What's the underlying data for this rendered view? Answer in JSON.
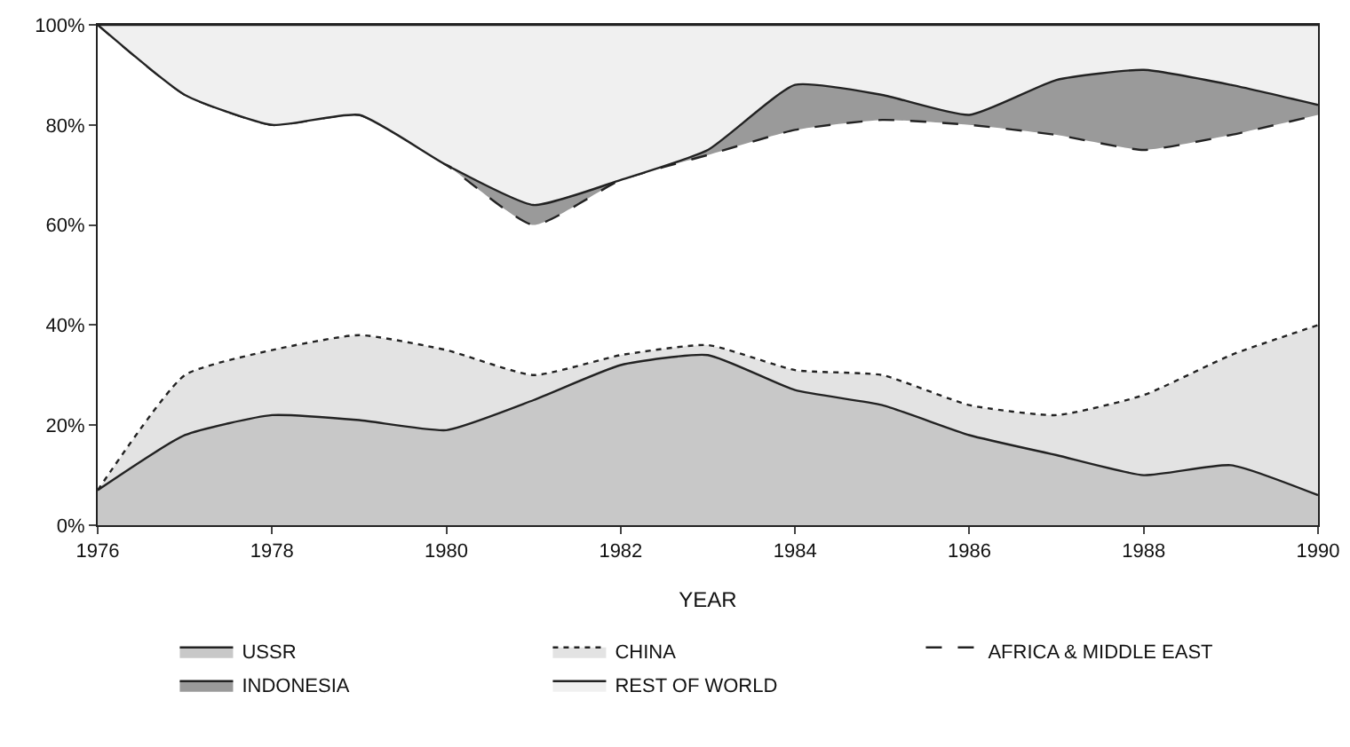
{
  "chart_data": {
    "type": "area",
    "stacked": true,
    "xlabel": "YEAR",
    "legend": "bottom",
    "marker": "none",
    "x": [
      1976,
      1977,
      1978,
      1979,
      1980,
      1981,
      1982,
      1983,
      1984,
      1985,
      1986,
      1987,
      1988,
      1989,
      1990
    ],
    "xlim": [
      1976,
      1990
    ],
    "xticks": [
      1976,
      1978,
      1980,
      1982,
      1984,
      1986,
      1988,
      1990
    ],
    "ylim": [
      0,
      100
    ],
    "yticks": [
      {
        "value": 0,
        "label": "0%"
      },
      {
        "value": 20,
        "label": "20%"
      },
      {
        "value": 40,
        "label": "40%"
      },
      {
        "value": 60,
        "label": "60%"
      },
      {
        "value": 80,
        "label": "80%"
      },
      {
        "value": 100,
        "label": "100%"
      }
    ],
    "series": [
      {
        "name": "USSR",
        "color": "#c8c8c8",
        "line_style": "solid",
        "values": [
          7,
          18,
          22,
          21,
          19,
          25,
          32,
          34,
          27,
          24,
          18,
          14,
          10,
          12,
          6
        ]
      },
      {
        "name": "CHINA",
        "color": "#e3e3e3",
        "line_style": "dotted",
        "values": [
          0,
          12,
          13,
          17,
          16,
          5,
          2,
          2,
          4,
          6,
          6,
          8,
          16,
          22,
          34
        ]
      },
      {
        "name": "AFRICA & MIDDLE EAST",
        "color": "#ffffff",
        "line_style": "dashed",
        "values": [
          93,
          56,
          45,
          44,
          37,
          30,
          35,
          38,
          48,
          51,
          56,
          56,
          49,
          44,
          42
        ]
      },
      {
        "name": "INDONESIA",
        "color": "#9a9a9a",
        "line_style": "solid",
        "values": [
          0,
          0,
          0,
          0,
          0,
          4,
          0,
          1,
          9,
          5,
          2,
          11,
          16,
          10,
          2
        ]
      },
      {
        "name": "REST OF WORLD",
        "color": "#f0f0f0",
        "line_style": "solid",
        "values": [
          0,
          14,
          20,
          18,
          28,
          36,
          31,
          25,
          12,
          14,
          18,
          11,
          9,
          12,
          16
        ]
      }
    ]
  }
}
